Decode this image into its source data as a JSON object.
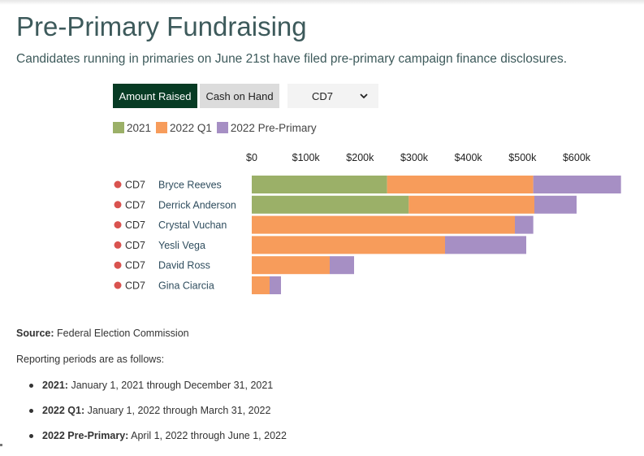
{
  "header": {
    "title": "Pre-Primary Fundraising",
    "subtitle": "Candidates running in primaries on June 21st have filed pre-primary campaign finance disclosures."
  },
  "controls": {
    "amount_label": "Amount Raised",
    "cash_label": "Cash on Hand",
    "district_selected": "CD7",
    "active_toggle": "Amount Raised",
    "chevron_icon": "chevron-down-icon"
  },
  "chart_data": {
    "type": "bar",
    "orientation": "horizontal",
    "stacked": true,
    "x_ticks": [
      "$0",
      "$100k",
      "$200k",
      "$300k",
      "$400k",
      "$500k",
      "$600k"
    ],
    "xlim": [
      0,
      600000
    ],
    "legend": [
      {
        "name": "2021",
        "color": "#9bb068"
      },
      {
        "name": "2022 Q1",
        "color": "#f79c5b"
      },
      {
        "name": "2022 Pre-Primary",
        "color": "#a68fc4"
      }
    ],
    "rows": [
      {
        "district": "CD7",
        "candidate": "Bryce Reeves",
        "values": [
          250000,
          270000,
          162000
        ]
      },
      {
        "district": "CD7",
        "candidate": "Derrick Anderson",
        "values": [
          290000,
          232000,
          78000
        ]
      },
      {
        "district": "CD7",
        "candidate": "Crystal Vuchan",
        "values": [
          0,
          486000,
          34000
        ]
      },
      {
        "district": "CD7",
        "candidate": "Yesli Vega",
        "values": [
          0,
          357000,
          150000
        ]
      },
      {
        "district": "CD7",
        "candidate": "David Ross",
        "values": [
          0,
          144000,
          45000
        ]
      },
      {
        "district": "CD7",
        "candidate": "Gina Ciarcia",
        "values": [
          0,
          33000,
          21000
        ]
      }
    ],
    "party_dot_color": "#d9534f"
  },
  "notes": {
    "source_label": "Source:",
    "source_value": "Federal Election Commission",
    "periods_intro": "Reporting periods are as follows:",
    "periods": [
      {
        "name": "2021:",
        "range": "January 1, 2021 through December 31, 2021"
      },
      {
        "name": "2022 Q1:",
        "range": "January 1, 2022 through March 31, 2022"
      },
      {
        "name": "2022 Pre-Primary:",
        "range": "April 1, 2022 through June 1, 2022"
      }
    ]
  }
}
